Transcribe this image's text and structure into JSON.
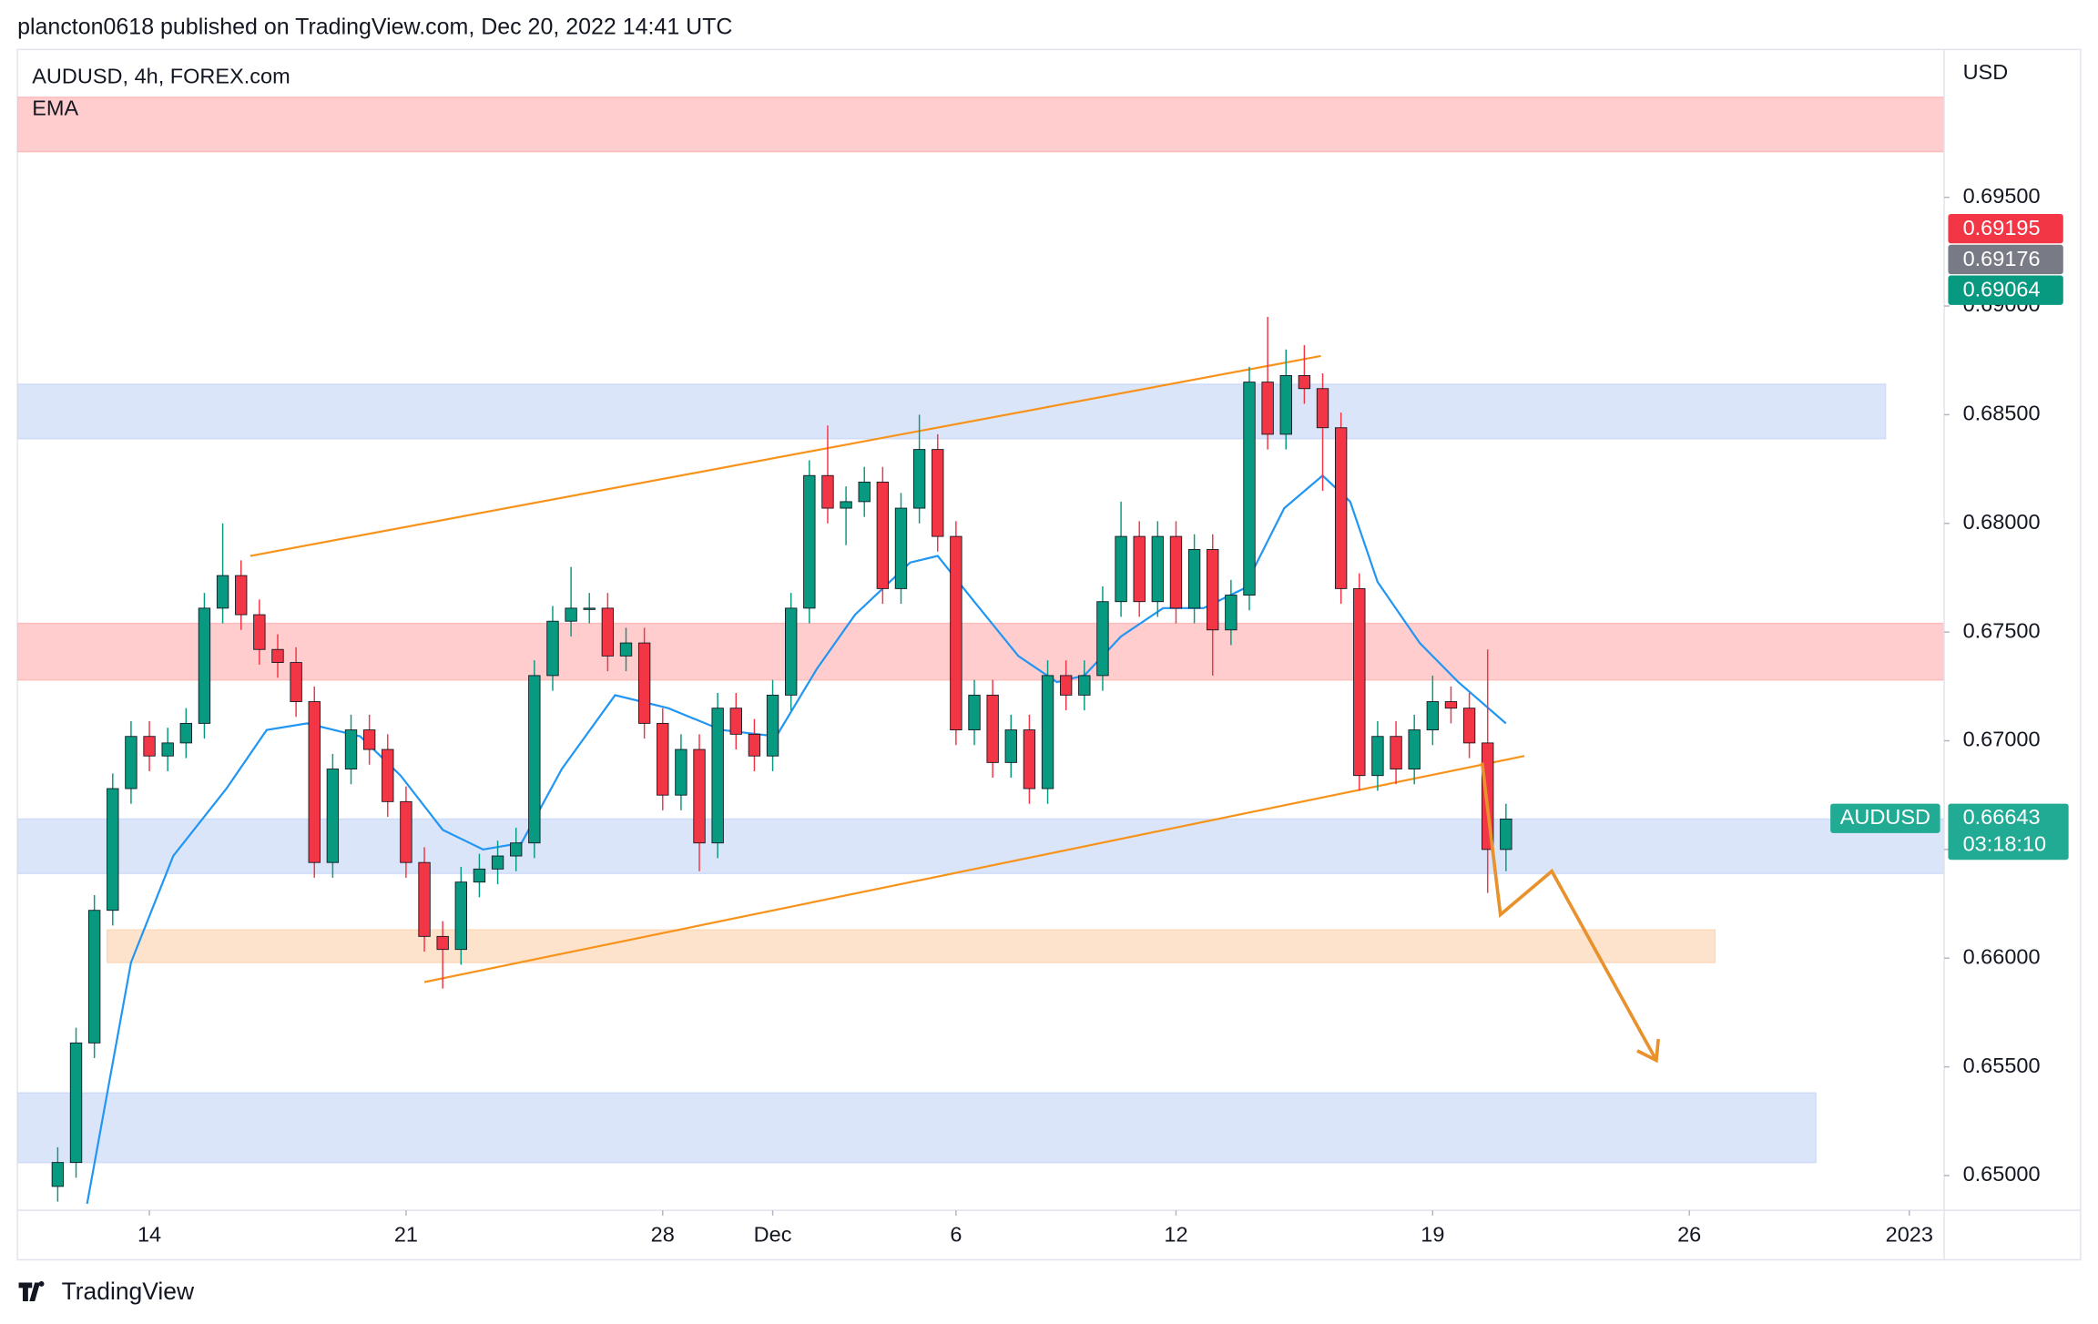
{
  "header": "plancton0618 published on TradingView.com, Dec 20, 2022 14:41 UTC",
  "footer": "TradingView",
  "chart_data": {
    "type": "candlestick",
    "title": "AUDUSD, 4h, FOREX.com",
    "y_axis_label": "USD",
    "up_color": "#089981",
    "down_color": "#f23645",
    "x": [
      -5,
      -4,
      -3,
      -2,
      -1,
      0,
      1,
      2,
      3,
      4,
      5,
      6,
      7,
      8,
      9,
      10,
      11,
      12,
      13,
      14,
      15,
      16,
      17,
      18,
      19,
      20,
      21,
      22,
      23,
      24,
      25,
      26,
      27,
      28,
      29,
      30,
      31,
      32,
      33,
      34,
      35,
      36,
      37,
      38,
      39,
      40,
      41,
      42,
      43,
      44,
      45,
      46,
      47,
      48,
      49,
      50,
      51,
      52,
      53,
      54,
      55,
      56,
      57,
      58,
      59,
      60,
      61,
      62,
      63,
      64,
      65,
      66,
      67,
      68,
      69,
      70,
      71,
      72,
      73,
      74
    ],
    "open": [
      0.6495,
      0.6506,
      0.6561,
      0.6622,
      0.6678,
      0.6702,
      0.6693,
      0.6699,
      0.6708,
      0.6761,
      0.6776,
      0.6758,
      0.6742,
      0.6736,
      0.6718,
      0.6644,
      0.6687,
      0.6705,
      0.6696,
      0.6672,
      0.6644,
      0.661,
      0.6604,
      0.6635,
      0.6641,
      0.6647,
      0.6653,
      0.673,
      0.6755,
      0.6761,
      0.6761,
      0.6739,
      0.6745,
      0.6708,
      0.6675,
      0.6696,
      0.6653,
      0.6715,
      0.6703,
      0.6693,
      0.6721,
      0.6761,
      0.6822,
      0.6807,
      0.681,
      0.6819,
      0.677,
      0.6807,
      0.6834,
      0.6794,
      0.6705,
      0.6721,
      0.669,
      0.6705,
      0.6678,
      0.673,
      0.6721,
      0.673,
      0.6764,
      0.6794,
      0.6764,
      0.6794,
      0.6761,
      0.6788,
      0.6751,
      0.6767,
      0.6865,
      0.6841,
      0.6868,
      0.6862,
      0.6844,
      0.677,
      0.6684,
      0.6702,
      0.6687,
      0.6705,
      0.6718,
      0.6715,
      0.6699,
      0.665
    ],
    "high": [
      0.6513,
      0.6568,
      0.6629,
      0.6685,
      0.6709,
      0.6709,
      0.6706,
      0.6715,
      0.6768,
      0.68,
      0.6783,
      0.6765,
      0.6749,
      0.6743,
      0.6725,
      0.6694,
      0.6712,
      0.6712,
      0.6703,
      0.6679,
      0.6651,
      0.6617,
      0.6642,
      0.6648,
      0.6654,
      0.666,
      0.6737,
      0.6762,
      0.678,
      0.6768,
      0.6768,
      0.6752,
      0.6752,
      0.6715,
      0.6703,
      0.6703,
      0.6722,
      0.6722,
      0.671,
      0.6728,
      0.6768,
      0.6829,
      0.6845,
      0.6817,
      0.6826,
      0.6826,
      0.6814,
      0.685,
      0.6841,
      0.6801,
      0.6728,
      0.6728,
      0.6712,
      0.6712,
      0.6737,
      0.6737,
      0.6737,
      0.6771,
      0.681,
      0.6801,
      0.6801,
      0.6801,
      0.6795,
      0.6795,
      0.6774,
      0.6872,
      0.6895,
      0.688,
      0.6882,
      0.6869,
      0.6851,
      0.6777,
      0.6709,
      0.6709,
      0.6712,
      0.673,
      0.6725,
      0.6722,
      0.6742,
      0.6671
    ],
    "low": [
      0.6488,
      0.6499,
      0.6554,
      0.6615,
      0.6671,
      0.6686,
      0.6686,
      0.6692,
      0.6701,
      0.6754,
      0.6751,
      0.6735,
      0.6729,
      0.6711,
      0.6637,
      0.6637,
      0.668,
      0.6689,
      0.6665,
      0.6637,
      0.6603,
      0.6586,
      0.6597,
      0.6628,
      0.6634,
      0.664,
      0.6646,
      0.6723,
      0.6748,
      0.6754,
      0.6732,
      0.6732,
      0.6701,
      0.6668,
      0.6668,
      0.664,
      0.6646,
      0.6696,
      0.6686,
      0.6686,
      0.6714,
      0.6754,
      0.68,
      0.679,
      0.6803,
      0.6763,
      0.6763,
      0.68,
      0.6787,
      0.6698,
      0.6698,
      0.6683,
      0.6683,
      0.6671,
      0.6671,
      0.6714,
      0.6714,
      0.6723,
      0.6757,
      0.6757,
      0.6757,
      0.6754,
      0.6754,
      0.673,
      0.6744,
      0.676,
      0.6834,
      0.6834,
      0.6855,
      0.6815,
      0.6763,
      0.6677,
      0.6677,
      0.668,
      0.668,
      0.6698,
      0.6708,
      0.6692,
      0.663,
      0.664
    ],
    "close": [
      0.6506,
      0.6561,
      0.6622,
      0.6678,
      0.6702,
      0.6693,
      0.6699,
      0.6708,
      0.6761,
      0.6776,
      0.6758,
      0.6742,
      0.6736,
      0.6718,
      0.6644,
      0.6687,
      0.6705,
      0.6696,
      0.6672,
      0.6644,
      0.661,
      0.6604,
      0.6635,
      0.6641,
      0.6647,
      0.6653,
      0.673,
      0.6755,
      0.6761,
      0.6761,
      0.6739,
      0.6745,
      0.6708,
      0.6675,
      0.6696,
      0.6653,
      0.6715,
      0.6703,
      0.6693,
      0.6721,
      0.6761,
      0.6822,
      0.6807,
      0.681,
      0.6819,
      0.677,
      0.6807,
      0.6834,
      0.6794,
      0.6705,
      0.6721,
      0.669,
      0.6705,
      0.6678,
      0.673,
      0.6721,
      0.673,
      0.6764,
      0.6794,
      0.6764,
      0.6794,
      0.6761,
      0.6788,
      0.6751,
      0.6767,
      0.6865,
      0.6841,
      0.6868,
      0.6862,
      0.6844,
      0.677,
      0.6684,
      0.6702,
      0.6687,
      0.6705,
      0.6718,
      0.6715,
      0.6699,
      0.665,
      0.6664
    ],
    "ema": {
      "name": "EMA",
      "color": "#2196f3",
      "x": [
        -3.4,
        -1,
        1.3,
        4.2,
        6.4,
        8.6,
        11.5,
        13.7,
        16,
        18.2,
        20.3,
        22.5,
        25.4,
        28.3,
        31.2,
        34.2,
        36.4,
        38.5,
        41.5,
        43,
        45,
        47.4,
        49.5,
        51,
        53,
        55.3,
        57.5,
        59.7,
        61.9,
        64,
        65.5,
        67,
        69.3,
        71.4,
        74
      ],
      "values": [
        0.6487,
        0.6598,
        0.6647,
        0.6678,
        0.6705,
        0.6708,
        0.6702,
        0.6684,
        0.6659,
        0.665,
        0.6653,
        0.6687,
        0.6721,
        0.6715,
        0.6705,
        0.6702,
        0.6733,
        0.6758,
        0.6782,
        0.6785,
        0.6764,
        0.6739,
        0.6727,
        0.673,
        0.6748,
        0.6761,
        0.6761,
        0.677,
        0.6807,
        0.6822,
        0.681,
        0.6773,
        0.6745,
        0.6727,
        0.6708
      ]
    },
    "zones": [
      {
        "x": [
          -7.2,
          97.9
        ],
        "y": [
          0.6996,
          0.6971
        ],
        "color": "#ffbcbc"
      },
      {
        "x": [
          -7.2,
          94.7
        ],
        "y": [
          0.6864,
          0.6839
        ],
        "color": "#cfdcf7"
      },
      {
        "x": [
          -7.2,
          97.9
        ],
        "y": [
          0.6754,
          0.6728
        ],
        "color": "#ffbcbc"
      },
      {
        "x": [
          -7.2,
          97.9
        ],
        "y": [
          0.6664,
          0.6639
        ],
        "color": "#cfdcf7"
      },
      {
        "x": [
          -2.3,
          85.4
        ],
        "y": [
          0.6613,
          0.6598
        ],
        "color": "#fcd9bb"
      },
      {
        "x": [
          -7.2,
          90.9
        ],
        "y": [
          0.6538,
          0.6506
        ],
        "color": "#cfdcf7"
      }
    ],
    "trendlines": [
      {
        "x": [
          5.5,
          63.9
        ],
        "y": [
          0.6785,
          0.6877
        ],
        "color": "#f7931a"
      },
      {
        "x": [
          15,
          75
        ],
        "y": [
          0.6589,
          0.6693
        ],
        "color": "#f7931a"
      }
    ],
    "projection": {
      "x": [
        72.7,
        73.7,
        76.5,
        82.2
      ],
      "y": [
        0.669,
        0.662,
        0.664,
        0.6553
      ],
      "color": "#e8912d"
    },
    "xlim": [
      -7.2,
      97.9
    ],
    "ylim": [
      0.6484,
      0.7018
    ],
    "xticks": [
      {
        "value": 0,
        "label": "14"
      },
      {
        "value": 14,
        "label": "21"
      },
      {
        "value": 28,
        "label": "28"
      },
      {
        "value": 34,
        "label": "Dec"
      },
      {
        "value": 44,
        "label": "6"
      },
      {
        "value": 56,
        "label": "12"
      },
      {
        "value": 70,
        "label": "19"
      },
      {
        "value": 84,
        "label": "26"
      },
      {
        "value": 96,
        "label": "2023"
      }
    ],
    "yticks": [
      {
        "value": 0.65,
        "label": "0.65000"
      },
      {
        "value": 0.655,
        "label": "0.65500"
      },
      {
        "value": 0.66,
        "label": "0.66000"
      },
      {
        "value": 0.665,
        "label": "0.66500"
      },
      {
        "value": 0.67,
        "label": "0.67000"
      },
      {
        "value": 0.675,
        "label": "0.67500"
      },
      {
        "value": 0.68,
        "label": "0.68000"
      },
      {
        "value": 0.685,
        "label": "0.68500"
      },
      {
        "value": 0.69,
        "label": "0.69000"
      },
      {
        "value": 0.695,
        "label": "0.69500"
      }
    ],
    "price_badges": [
      {
        "value": 0.69195,
        "color": "#f23645"
      },
      {
        "value": 0.69176,
        "color": "#787b86"
      },
      {
        "value": 0.69064,
        "color": "#089981"
      }
    ],
    "last_price": {
      "symbol": "AUDUSD",
      "value": 0.66643,
      "countdown": "03:18:10",
      "color": "#22ab94"
    }
  }
}
